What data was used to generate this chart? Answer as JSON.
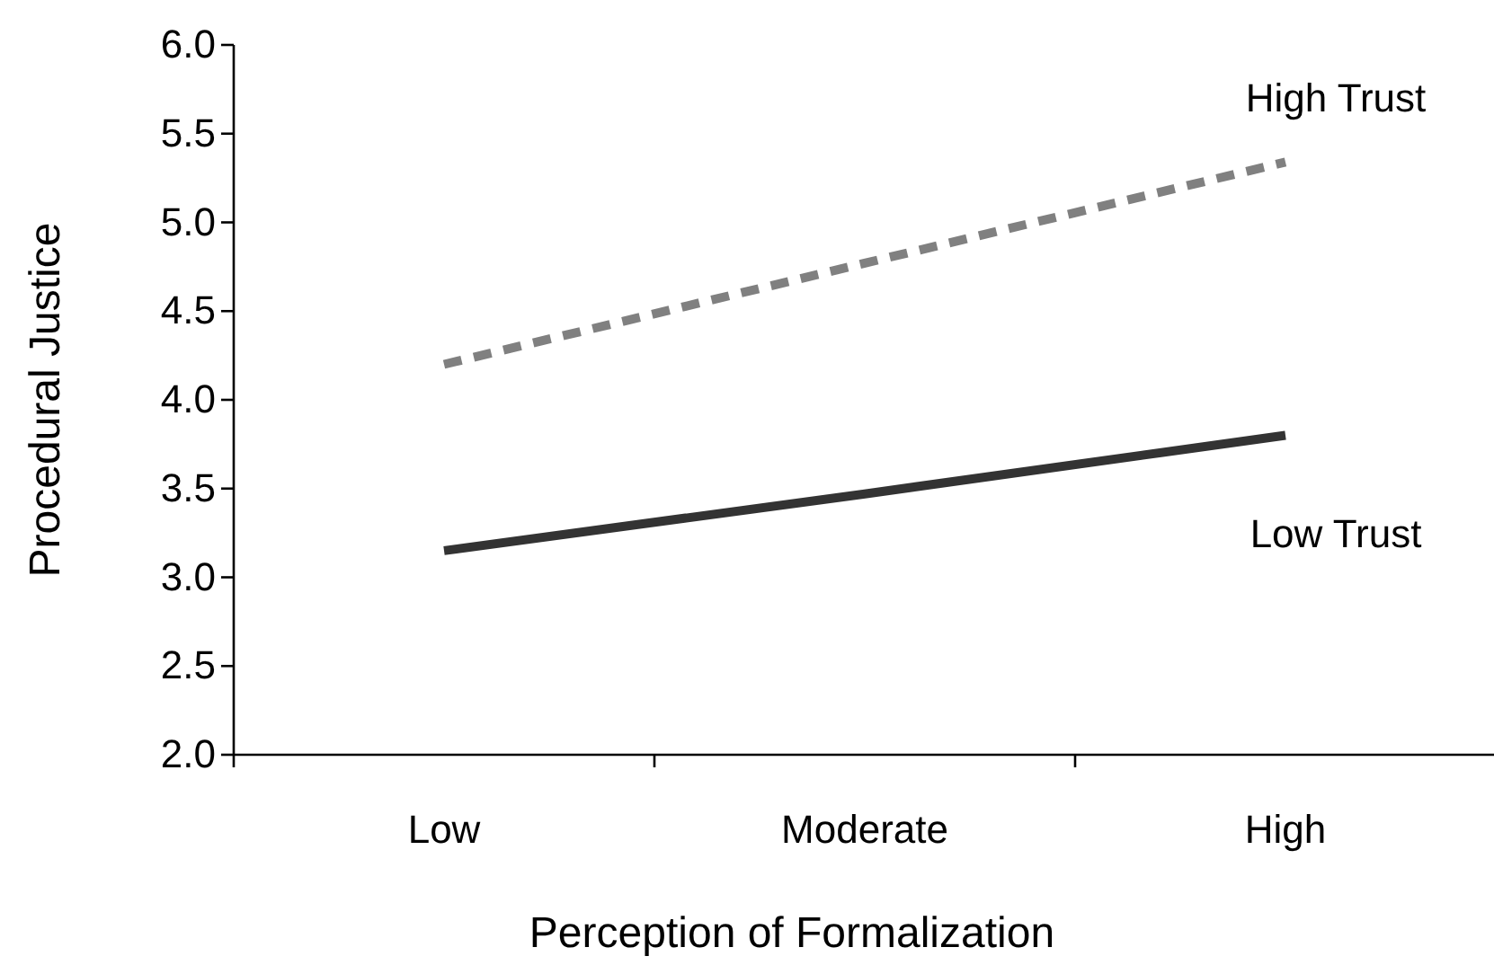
{
  "chart_data": {
    "type": "line",
    "xlabel": "Perception of Formalization",
    "ylabel": "Procedural Justice",
    "categories": [
      "Low",
      "Moderate",
      "High"
    ],
    "series": [
      {
        "name": "High Trust",
        "color": "#808080",
        "line_style": "dashed",
        "values": [
          4.2,
          4.77,
          5.34
        ]
      },
      {
        "name": "Low Trust",
        "color": "#333333",
        "line_style": "solid",
        "values": [
          3.15,
          3.47,
          3.8
        ]
      }
    ],
    "ylim": [
      2,
      6
    ],
    "yticks": [
      {
        "value": 2,
        "label": "2.0"
      },
      {
        "value": 2.5,
        "label": "2.5"
      },
      {
        "value": 3,
        "label": "3.0"
      },
      {
        "value": 3.5,
        "label": "3.5"
      },
      {
        "value": 4,
        "label": "4.0"
      },
      {
        "value": 4.5,
        "label": "4.5"
      },
      {
        "value": 5,
        "label": "5.0"
      },
      {
        "value": 5.5,
        "label": "5.5"
      },
      {
        "value": 6,
        "label": "6.0"
      }
    ],
    "grid": false,
    "marker": "none"
  }
}
